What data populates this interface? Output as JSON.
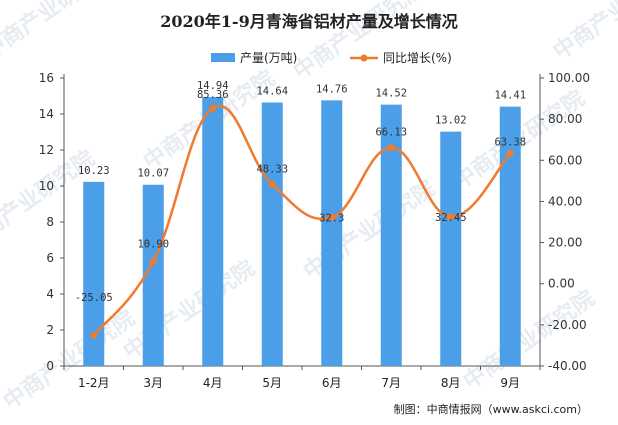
{
  "title": "2020年1-9月青海省铝材产量及增长情况",
  "source": "制图：中商情报网（www.askci.com）",
  "watermark": "中商产业研究院",
  "colors": {
    "bar": "#4a9fe8",
    "line": "#f07a2e",
    "watermark": "#c9d6e3"
  },
  "legend": {
    "bar_label": "产量(万吨)",
    "line_label": "同比增长(%)"
  },
  "chart_data": {
    "type": "bar",
    "categories": [
      "1-2月",
      "3月",
      "4月",
      "5月",
      "6月",
      "7月",
      "8月",
      "9月"
    ],
    "series": [
      {
        "name": "产量(万吨)",
        "type": "bar",
        "axis": "left",
        "values": [
          10.23,
          10.07,
          14.94,
          14.64,
          14.76,
          14.52,
          13.02,
          14.41
        ],
        "labels": [
          "10.23",
          "10.07",
          "14.94",
          "14.64",
          "14.76",
          "14.52",
          "13.02",
          "14.41"
        ]
      },
      {
        "name": "同比增长(%)",
        "type": "line",
        "axis": "right",
        "values": [
          -25.05,
          10.9,
          85.36,
          48.33,
          32.3,
          66.13,
          32.45,
          63.38
        ],
        "labels": [
          "-25.05",
          "10.90",
          "85.36",
          "48.33",
          "32.3",
          "66.13",
          "32.45",
          "63.38"
        ]
      }
    ],
    "y_left": {
      "min": 0,
      "max": 16,
      "ticks": [
        "0",
        "2",
        "4",
        "6",
        "8",
        "10",
        "12",
        "14",
        "16"
      ]
    },
    "y_right": {
      "min": -40,
      "max": 100,
      "ticks": [
        "-40.00",
        "-20.00",
        "0.00",
        "20.00",
        "40.00",
        "60.00",
        "80.00",
        "100.00"
      ]
    },
    "grid": false,
    "legend_position": "top"
  }
}
